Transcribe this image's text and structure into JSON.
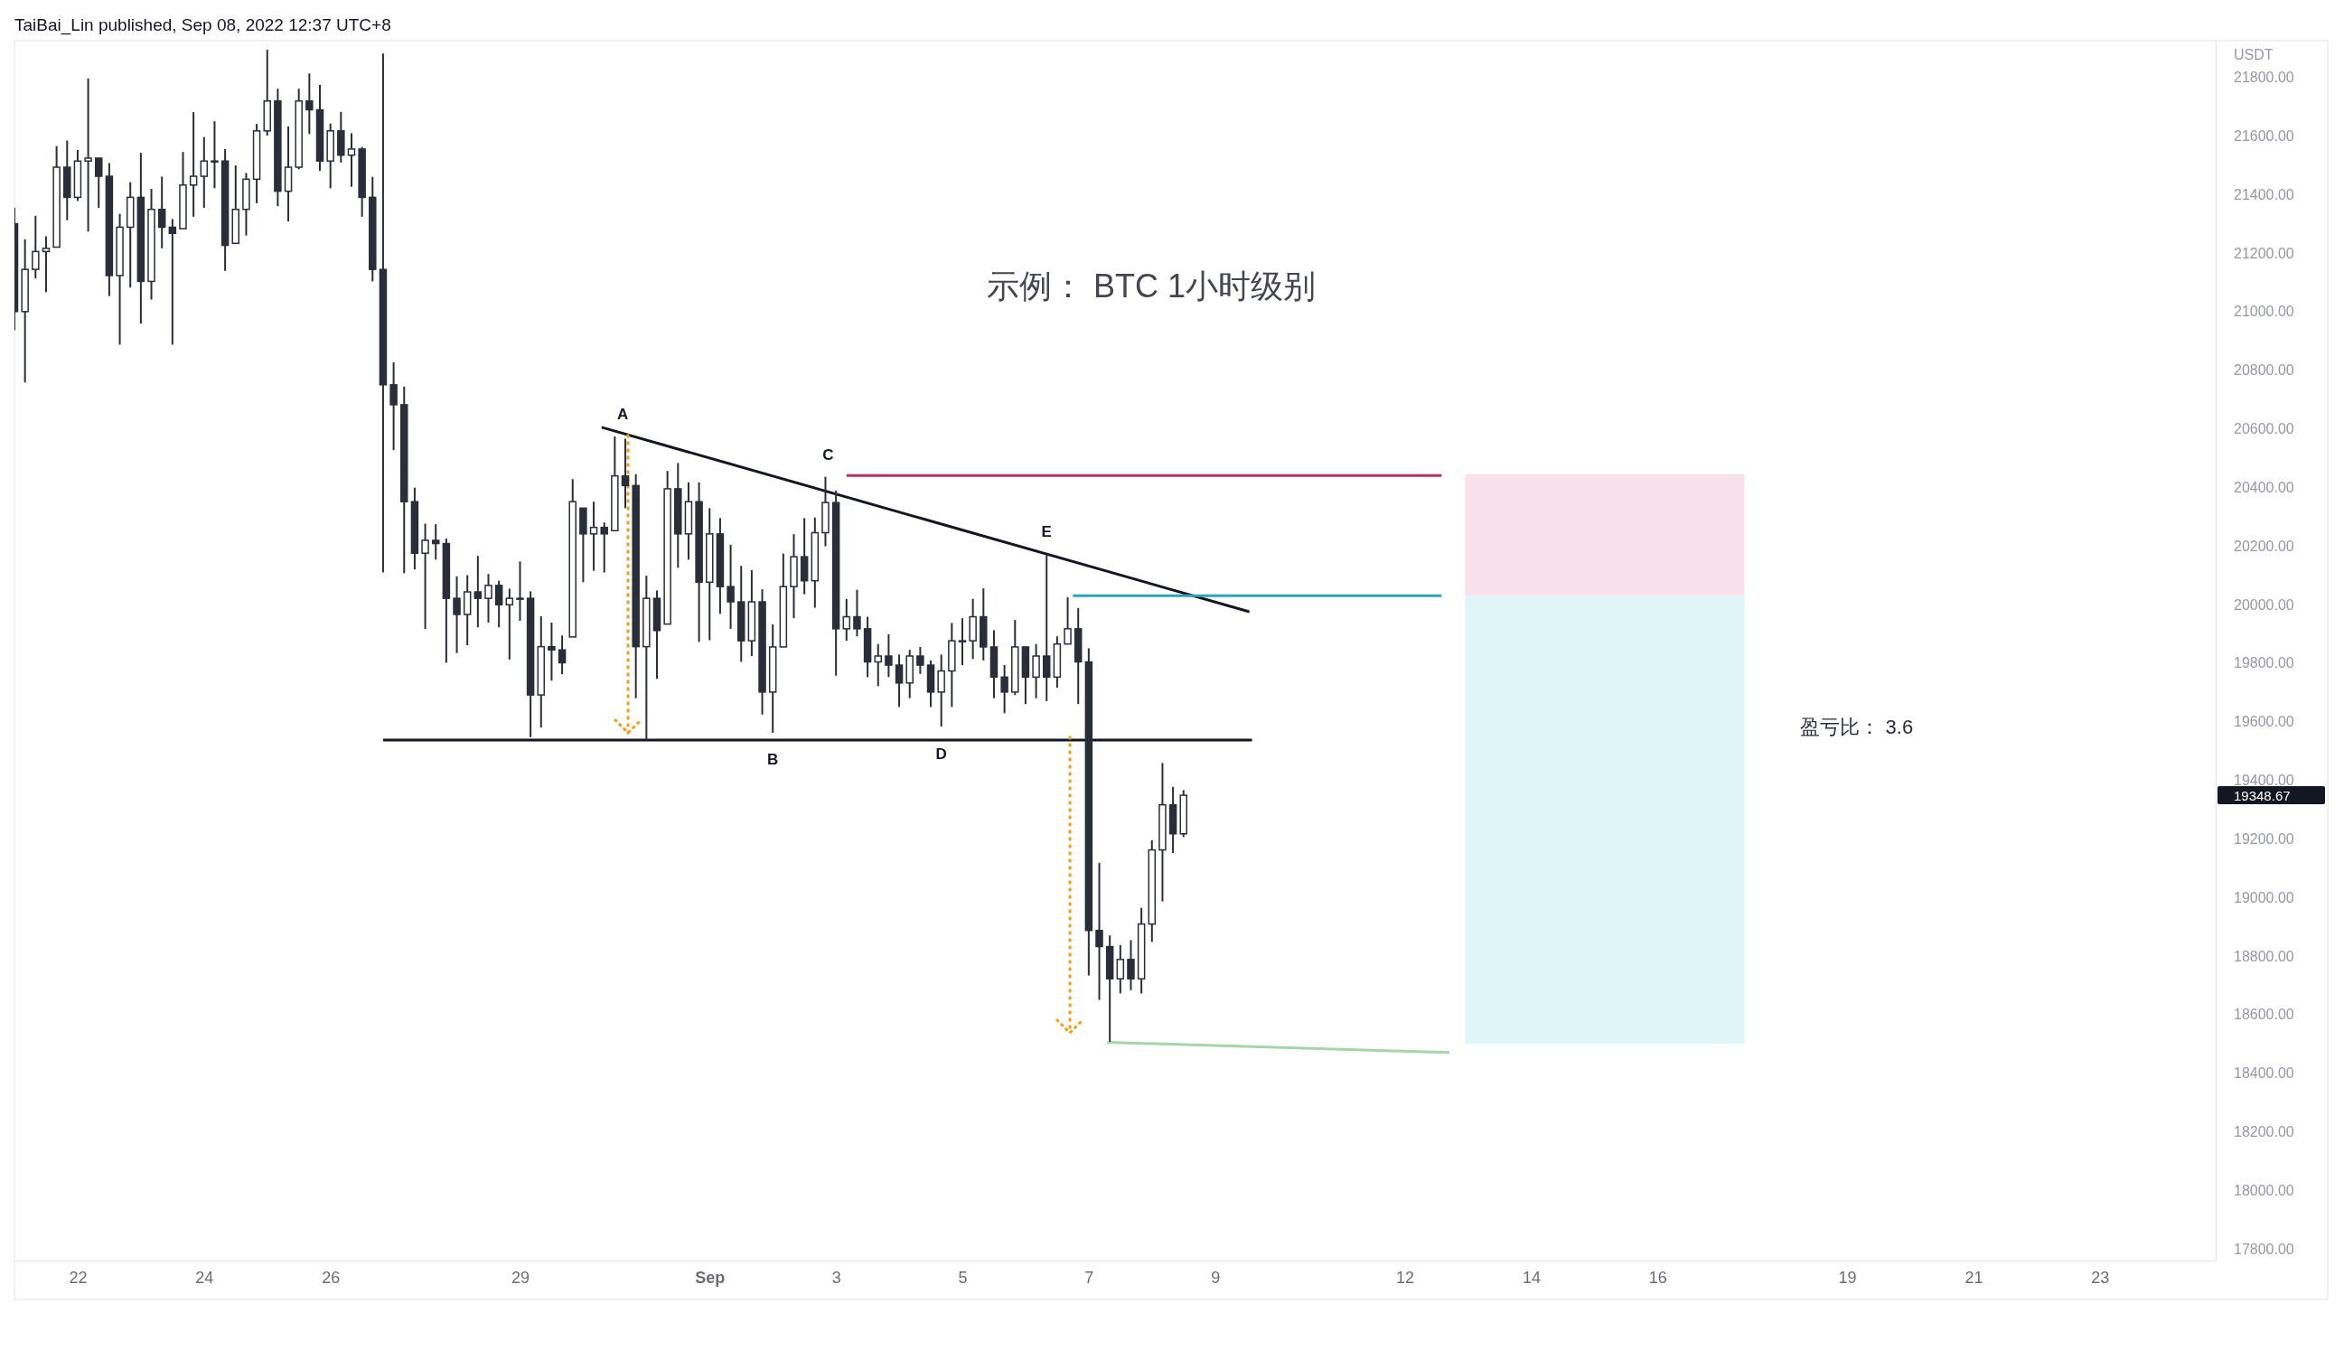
{
  "chart_data": {
    "type": "candlestick",
    "title": "示例： BTC 1小时级别",
    "ylabel": "USDT",
    "color": "#2a2e39",
    "xlim": [
      "2022-08-21T00:00",
      "2022-09-24T20:00"
    ],
    "ylim": [
      17760,
      21925
    ],
    "xticks": [
      {
        "value": "2022-08-22",
        "label": "22"
      },
      {
        "value": "2022-08-24",
        "label": "24"
      },
      {
        "value": "2022-08-26",
        "label": "26"
      },
      {
        "value": "2022-08-29",
        "label": "29"
      },
      {
        "value": "2022-09-01",
        "label": "Sep"
      },
      {
        "value": "2022-09-03",
        "label": "3"
      },
      {
        "value": "2022-09-05",
        "label": "5"
      },
      {
        "value": "2022-09-07",
        "label": "7"
      },
      {
        "value": "2022-09-09",
        "label": "9"
      },
      {
        "value": "2022-09-12",
        "label": "12"
      },
      {
        "value": "2022-09-14",
        "label": "14"
      },
      {
        "value": "2022-09-16",
        "label": "16"
      },
      {
        "value": "2022-09-19",
        "label": "19"
      },
      {
        "value": "2022-09-21",
        "label": "21"
      },
      {
        "value": "2022-09-23",
        "label": "23"
      }
    ],
    "yticks": [
      {
        "value": 17800,
        "label": "17800.00"
      },
      {
        "value": 18000,
        "label": "18000.00"
      },
      {
        "value": 18200,
        "label": "18200.00"
      },
      {
        "value": 18400,
        "label": "18400.00"
      },
      {
        "value": 18600,
        "label": "18600.00"
      },
      {
        "value": 18800,
        "label": "18800.00"
      },
      {
        "value": 19000,
        "label": "19000.00"
      },
      {
        "value": 19200,
        "label": "19200.00"
      },
      {
        "value": 19400,
        "label": "19400.00"
      },
      {
        "value": 19600,
        "label": "19600.00"
      },
      {
        "value": 19800,
        "label": "19800.00"
      },
      {
        "value": 20000,
        "label": "20000.00"
      },
      {
        "value": 20200,
        "label": "20200.00"
      },
      {
        "value": 20400,
        "label": "20400.00"
      },
      {
        "value": 20600,
        "label": "20600.00"
      },
      {
        "value": 20800,
        "label": "20800.00"
      },
      {
        "value": 21000,
        "label": "21000.00"
      },
      {
        "value": 21200,
        "label": "21200.00"
      },
      {
        "value": 21400,
        "label": "21400.00"
      },
      {
        "value": 21600,
        "label": "21600.00"
      },
      {
        "value": 21800,
        "label": "21800.00"
      }
    ],
    "x": [
      "2022-08-21T00:00",
      "2022-08-21T04:00",
      "2022-08-21T08:00",
      "2022-08-21T12:00",
      "2022-08-21T16:00",
      "2022-08-21T20:00",
      "2022-08-22T00:00",
      "2022-08-22T04:00",
      "2022-08-22T08:00",
      "2022-08-22T12:00",
      "2022-08-22T16:00",
      "2022-08-22T20:00",
      "2022-08-23T00:00",
      "2022-08-23T04:00",
      "2022-08-23T08:00",
      "2022-08-23T12:00",
      "2022-08-23T16:00",
      "2022-08-23T20:00",
      "2022-08-24T00:00",
      "2022-08-24T04:00",
      "2022-08-24T08:00",
      "2022-08-24T12:00",
      "2022-08-24T16:00",
      "2022-08-24T20:00",
      "2022-08-25T00:00",
      "2022-08-25T04:00",
      "2022-08-25T08:00",
      "2022-08-25T12:00",
      "2022-08-25T16:00",
      "2022-08-25T20:00",
      "2022-08-26T00:00",
      "2022-08-26T04:00",
      "2022-08-26T08:00",
      "2022-08-26T12:00",
      "2022-08-26T16:00",
      "2022-08-26T20:00",
      "2022-08-27T00:00",
      "2022-08-27T04:00",
      "2022-08-27T08:00",
      "2022-08-27T12:00",
      "2022-08-27T16:00",
      "2022-08-27T20:00",
      "2022-08-28T00:00",
      "2022-08-28T04:00",
      "2022-08-28T08:00",
      "2022-08-28T12:00",
      "2022-08-28T16:00",
      "2022-08-28T20:00",
      "2022-08-29T00:00",
      "2022-08-29T04:00",
      "2022-08-29T08:00",
      "2022-08-29T12:00",
      "2022-08-29T16:00",
      "2022-08-29T20:00",
      "2022-08-30T00:00",
      "2022-08-30T04:00",
      "2022-08-30T08:00",
      "2022-08-30T12:00",
      "2022-08-30T16:00",
      "2022-08-30T20:00",
      "2022-08-31T00:00",
      "2022-08-31T04:00",
      "2022-08-31T08:00",
      "2022-08-31T12:00",
      "2022-08-31T16:00",
      "2022-08-31T20:00",
      "2022-09-01T00:00",
      "2022-09-01T04:00",
      "2022-09-01T08:00",
      "2022-09-01T12:00",
      "2022-09-01T16:00",
      "2022-09-01T20:00",
      "2022-09-02T00:00",
      "2022-09-02T04:00",
      "2022-09-02T08:00",
      "2022-09-02T12:00",
      "2022-09-02T16:00",
      "2022-09-02T20:00",
      "2022-09-03T00:00",
      "2022-09-03T04:00",
      "2022-09-03T08:00",
      "2022-09-03T12:00",
      "2022-09-03T16:00",
      "2022-09-03T20:00",
      "2022-09-04T00:00",
      "2022-09-04T04:00",
      "2022-09-04T08:00",
      "2022-09-04T12:00",
      "2022-09-04T16:00",
      "2022-09-04T20:00",
      "2022-09-05T00:00",
      "2022-09-05T04:00",
      "2022-09-05T08:00",
      "2022-09-05T12:00",
      "2022-09-05T16:00",
      "2022-09-05T20:00",
      "2022-09-06T00:00",
      "2022-09-06T04:00",
      "2022-09-06T08:00",
      "2022-09-06T12:00",
      "2022-09-06T16:00",
      "2022-09-06T20:00",
      "2022-09-07T00:00",
      "2022-09-07T04:00",
      "2022-09-07T08:00",
      "2022-09-07T12:00",
      "2022-09-07T16:00",
      "2022-09-07T20:00",
      "2022-09-08T00:00",
      "2022-09-08T04:00",
      "2022-09-08T08:00",
      "2022-09-08T12:00"
    ],
    "ohlc": [
      [
        21300,
        21354,
        20936,
        21000
      ],
      [
        21000,
        21247,
        20758,
        21144
      ],
      [
        21144,
        21327,
        21113,
        21205
      ],
      [
        21205,
        21257,
        21066,
        21216
      ],
      [
        21220,
        21565,
        21220,
        21493
      ],
      [
        21493,
        21584,
        21312,
        21390
      ],
      [
        21390,
        21552,
        21378,
        21514
      ],
      [
        21514,
        21796,
        21273,
        21524
      ],
      [
        21524,
        21524,
        21354,
        21462
      ],
      [
        21462,
        21507,
        21053,
        21123
      ],
      [
        21123,
        21334,
        20887,
        21288
      ],
      [
        21288,
        21442,
        21082,
        21390
      ],
      [
        21390,
        21542,
        20959,
        21103
      ],
      [
        21103,
        21419,
        21041,
        21349
      ],
      [
        21349,
        21461,
        21216,
        21288
      ],
      [
        21288,
        21316,
        20887,
        21267
      ],
      [
        21283,
        21545,
        21283,
        21432
      ],
      [
        21432,
        21681,
        21324,
        21462
      ],
      [
        21462,
        21596,
        21354,
        21514
      ],
      [
        21514,
        21650,
        21421,
        21514
      ],
      [
        21514,
        21555,
        21139,
        21226
      ],
      [
        21233,
        21499,
        21233,
        21349
      ],
      [
        21349,
        21473,
        21260,
        21452
      ],
      [
        21452,
        21641,
        21370,
        21617
      ],
      [
        21617,
        21894,
        21601,
        21719
      ],
      [
        21719,
        21761,
        21360,
        21411
      ],
      [
        21411,
        21632,
        21308,
        21493
      ],
      [
        21493,
        21761,
        21486,
        21719
      ],
      [
        21719,
        21813,
        21606,
        21689
      ],
      [
        21689,
        21774,
        21481,
        21514
      ],
      [
        21514,
        21642,
        21421,
        21617
      ],
      [
        21617,
        21682,
        21509,
        21534
      ],
      [
        21534,
        21609,
        21426,
        21555
      ],
      [
        21555,
        21562,
        21324,
        21390
      ],
      [
        21390,
        21460,
        21103,
        21144
      ],
      [
        21144,
        21881,
        20109,
        20750
      ],
      [
        20750,
        20827,
        20527,
        20682
      ],
      [
        20682,
        20744,
        20107,
        20351
      ],
      [
        20351,
        20399,
        20120,
        20175
      ],
      [
        20175,
        20276,
        19916,
        20219
      ],
      [
        20219,
        20274,
        20153,
        20208
      ],
      [
        20208,
        20225,
        19801,
        20021
      ],
      [
        20021,
        20096,
        19834,
        19966
      ],
      [
        19966,
        20100,
        19861,
        20043
      ],
      [
        20043,
        20166,
        19922,
        20021
      ],
      [
        20021,
        20104,
        19938,
        20065
      ],
      [
        20065,
        20081,
        19922,
        19999
      ],
      [
        19999,
        20054,
        19812,
        20021
      ],
      [
        20021,
        20147,
        19944,
        20021
      ],
      [
        20021,
        20045,
        19547,
        19691
      ],
      [
        19691,
        19960,
        19580,
        19856
      ],
      [
        19856,
        19938,
        19740,
        19845
      ],
      [
        19845,
        19894,
        19762,
        19801
      ],
      [
        19889,
        20428,
        19889,
        20351
      ],
      [
        20329,
        20329,
        20076,
        20241
      ],
      [
        20241,
        20351,
        20115,
        20263
      ],
      [
        20263,
        20280,
        20109,
        20241
      ],
      [
        20252,
        20574,
        20252,
        20439
      ],
      [
        20439,
        20566,
        20329,
        20406
      ],
      [
        20406,
        20445,
        19680,
        19856
      ],
      [
        19856,
        20098,
        19536,
        20021
      ],
      [
        20021,
        20048,
        19746,
        19911
      ],
      [
        19933,
        20456,
        19933,
        20395
      ],
      [
        20395,
        20483,
        20125,
        20241
      ],
      [
        20241,
        20417,
        20153,
        20351
      ],
      [
        20351,
        20417,
        19872,
        20076
      ],
      [
        20076,
        20329,
        19878,
        20241
      ],
      [
        20241,
        20295,
        19968,
        20061
      ],
      [
        20061,
        20204,
        19917,
        20009
      ],
      [
        20009,
        20132,
        19804,
        19876
      ],
      [
        19876,
        20117,
        19824,
        20009
      ],
      [
        20009,
        20052,
        19624,
        19701
      ],
      [
        19701,
        19932,
        19562,
        19855
      ],
      [
        19855,
        20174,
        19855,
        20061
      ],
      [
        20061,
        20240,
        19953,
        20163
      ],
      [
        20163,
        20295,
        20035,
        20081
      ],
      [
        20081,
        20297,
        19989,
        20245
      ],
      [
        20245,
        20436,
        20199,
        20348
      ],
      [
        20348,
        20389,
        19757,
        19917
      ],
      [
        19917,
        20019,
        19876,
        19958
      ],
      [
        19958,
        20050,
        19891,
        19917
      ],
      [
        19917,
        19958,
        19752,
        19804
      ],
      [
        19804,
        19865,
        19721,
        19824
      ],
      [
        19824,
        19898,
        19752,
        19793
      ],
      [
        19793,
        19829,
        19650,
        19732
      ],
      [
        19732,
        19845,
        19680,
        19824
      ],
      [
        19824,
        19855,
        19763,
        19793
      ],
      [
        19793,
        19809,
        19650,
        19701
      ],
      [
        19701,
        19829,
        19583,
        19773
      ],
      [
        19773,
        19937,
        19650,
        19876
      ],
      [
        19876,
        19953,
        19793,
        19876
      ],
      [
        19876,
        20019,
        19814,
        19958
      ],
      [
        19958,
        20055,
        19809,
        19855
      ],
      [
        19855,
        19912,
        19680,
        19752
      ],
      [
        19752,
        19793,
        19629,
        19701
      ],
      [
        19701,
        19947,
        19691,
        19855
      ],
      [
        19855,
        19855,
        19660,
        19752
      ],
      [
        19752,
        19865,
        19680,
        19824
      ],
      [
        19824,
        20174,
        19670,
        19752
      ],
      [
        19752,
        19891,
        19716,
        19865
      ],
      [
        19865,
        20025,
        19865,
        19917
      ],
      [
        19917,
        19988,
        19660,
        19804
      ],
      [
        19804,
        19850,
        18733,
        18887
      ],
      [
        18887,
        19118,
        18650,
        18832
      ],
      [
        18832,
        18870,
        18507,
        18722
      ],
      [
        18722,
        18837,
        18672,
        18788
      ],
      [
        18788,
        18854,
        18683,
        18722
      ],
      [
        18722,
        18964,
        18672,
        18909
      ],
      [
        18909,
        19195,
        18848,
        19162
      ],
      [
        19162,
        19459,
        18986,
        19316
      ],
      [
        19316,
        19377,
        19151,
        19217
      ],
      [
        19217,
        19366,
        19206,
        19348.67
      ]
    ],
    "series": [
      {
        "type": "bar",
        "color": "#f8e1ea",
        "x": [
          "2022-09-15T04:00"
        ],
        "values": [
          415
        ],
        "base": [
          20030
        ]
      },
      {
        "type": "bar",
        "color": "#e0f5f8",
        "x": [
          "2022-09-15T04:00"
        ],
        "values": [
          1530
        ],
        "base": [
          18500
        ]
      },
      {
        "type": "line",
        "color": "#131722",
        "x": [
          "2022-08-30T07:00",
          "2022-09-09T13:00"
        ],
        "values": [
          20605,
          19975
        ]
      },
      {
        "type": "line",
        "color": "#131722",
        "x": [
          "2022-08-26T20:00",
          "2022-09-09T14:00"
        ],
        "values": [
          19537,
          19537
        ]
      },
      {
        "type": "line",
        "color": "#b8325e",
        "x": [
          "2022-09-03T04:00",
          "2022-09-12T14:00"
        ],
        "values": [
          20440,
          20440
        ]
      },
      {
        "type": "line",
        "color": "#2fa4b8",
        "x": [
          "2022-09-06T18:00",
          "2022-09-12T14:00"
        ],
        "values": [
          20030,
          20030
        ]
      },
      {
        "type": "line",
        "color": "#a5d6a7",
        "x": [
          "2022-09-07T07:00",
          "2022-09-12T17:00"
        ],
        "values": [
          18505,
          18470
        ]
      }
    ],
    "annotations": [
      "TaiBai_Lin published, Sep 08, 2022 12:37 UTC+8",
      {
        "text": "A",
        "x": "2022-08-30T15:00",
        "y": 20574
      },
      {
        "text": "B",
        "x": "2022-09-02T00:00",
        "y": 19562
      },
      {
        "text": "C",
        "x": "2022-09-02T21:00",
        "y": 20436
      },
      {
        "text": "D",
        "x": "2022-09-04T16:00",
        "y": 19583
      },
      {
        "text": "E",
        "x": "2022-09-06T08:00",
        "y": 20174
      },
      "盈亏比： 3.6",
      "19348.67"
    ]
  }
}
